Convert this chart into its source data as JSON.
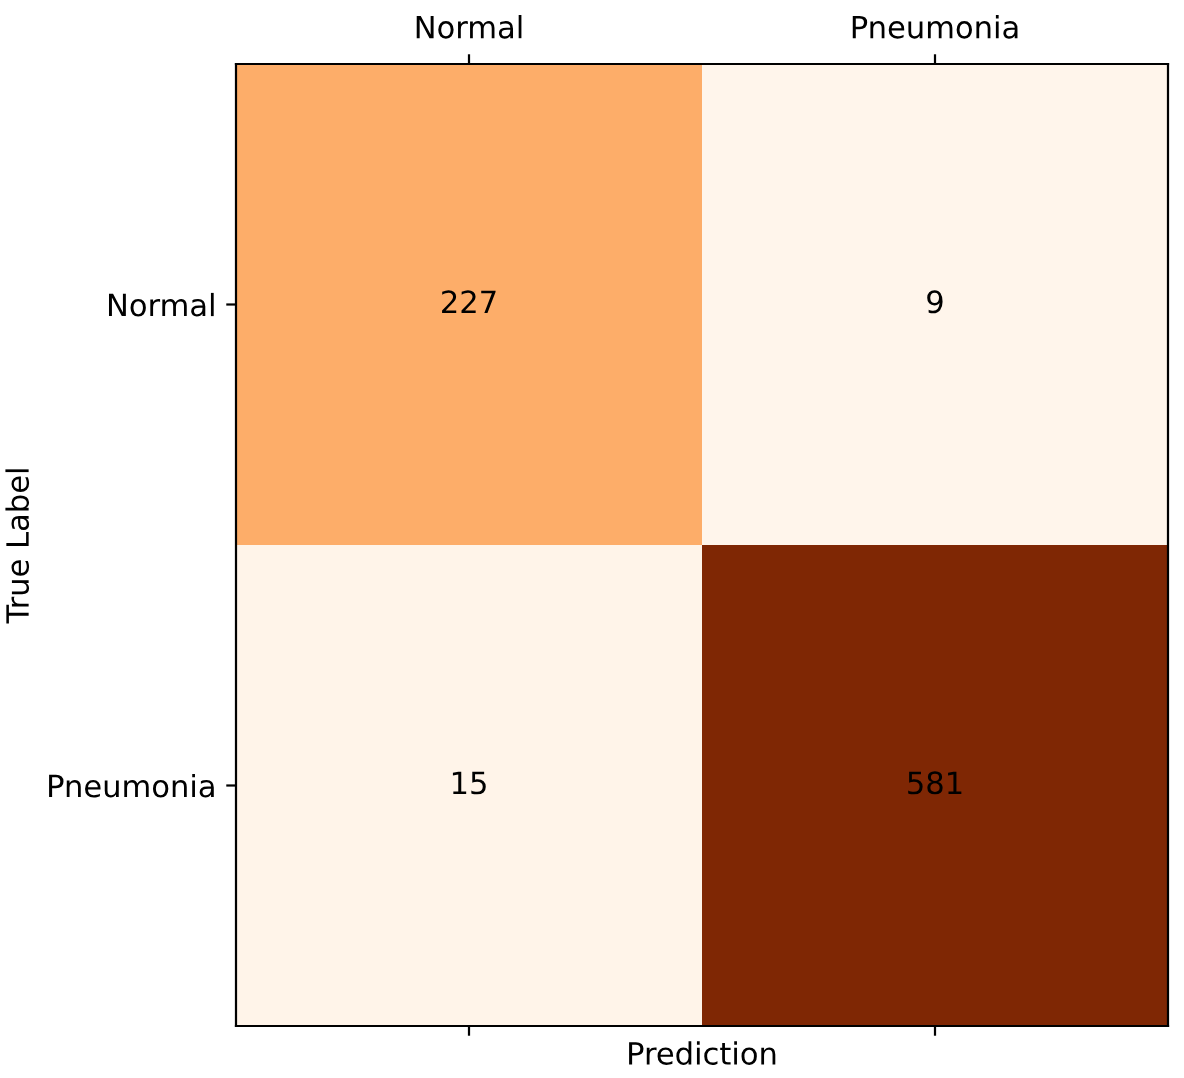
{
  "chart_data": {
    "type": "heatmap",
    "xlabel": "Prediction",
    "ylabel": "True Label",
    "categories": [
      "Normal",
      "Pneumonia"
    ],
    "y_categories": [
      "Normal",
      "Pneumonia"
    ],
    "cells": [
      [
        227,
        9
      ],
      [
        15,
        581
      ]
    ],
    "data_labels": true
  }
}
